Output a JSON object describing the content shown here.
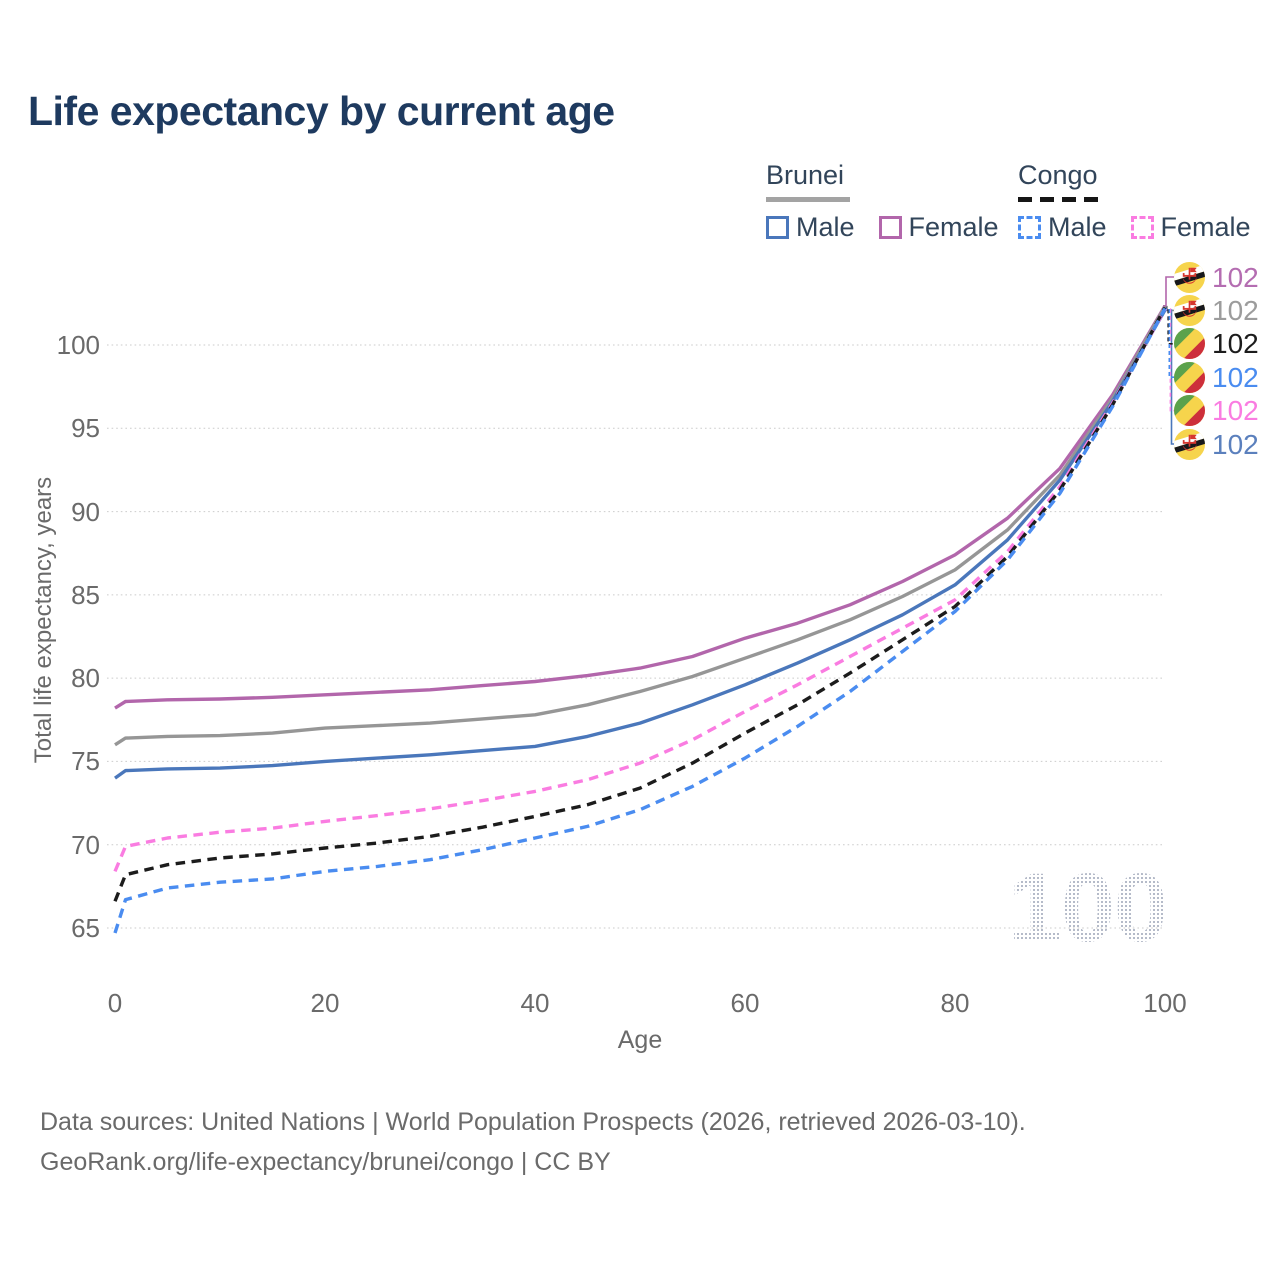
{
  "title": "Life expectancy by current age",
  "legend": {
    "groups": [
      {
        "name": "Brunei",
        "line_style": "solid",
        "rule_color": "#a3a3a3",
        "items": [
          {
            "label": "Male",
            "color": "#4a77bb"
          },
          {
            "label": "Female",
            "color": "#b266ab"
          }
        ]
      },
      {
        "name": "Congo",
        "line_style": "dashed",
        "rule_color": "#161616",
        "items": [
          {
            "label": "Male",
            "color": "#4a8cf0"
          },
          {
            "label": "Female",
            "color": "#fa7ce1"
          }
        ]
      }
    ]
  },
  "axes": {
    "x": {
      "label": "Age",
      "ticks": [
        0,
        20,
        40,
        60,
        80,
        100
      ]
    },
    "y": {
      "label": "Total life expectancy, years",
      "ticks": [
        65,
        70,
        75,
        80,
        85,
        90,
        95,
        100
      ]
    }
  },
  "watermark": {
    "text": "100"
  },
  "footer": {
    "line1": "Data sources: United Nations | World Population Prospects (2026, retrieved 2026-03-10).",
    "line2": "GeoRank.org/life-expectancy/brunei/congo | CC BY"
  },
  "chart_data": {
    "type": "line",
    "title": "Life expectancy by current age",
    "xlabel": "Age",
    "ylabel": "Total life expectancy, years",
    "xlim": [
      0,
      100
    ],
    "ylim": [
      63,
      104
    ],
    "grid": "horizontal-dotted",
    "legend_position": "top-right",
    "ages": [
      0,
      1,
      5,
      10,
      15,
      20,
      25,
      30,
      35,
      40,
      45,
      50,
      55,
      60,
      65,
      70,
      75,
      80,
      85,
      90,
      95,
      100
    ],
    "series": [
      {
        "id": "brunei_female",
        "name": "Brunei Female",
        "country": "Brunei",
        "sex": "Female",
        "style": "solid",
        "color": "#b266ab",
        "label_color": "#b46db1",
        "end_label": "102",
        "label_row": 0,
        "values": [
          78.2,
          78.6,
          78.7,
          78.75,
          78.85,
          79.0,
          79.15,
          79.3,
          79.55,
          79.8,
          80.15,
          80.6,
          81.3,
          82.4,
          83.3,
          84.4,
          85.8,
          87.4,
          89.6,
          92.6,
          97.0,
          102.35
        ]
      },
      {
        "id": "brunei_both",
        "name": "Brunei Both sexes",
        "country": "Brunei",
        "sex": "Both",
        "style": "solid",
        "color": "#969696",
        "label_color": "#9c9c9c",
        "end_label": "102",
        "label_row": 1,
        "values": [
          76.0,
          76.4,
          76.5,
          76.55,
          76.7,
          77.0,
          77.15,
          77.3,
          77.55,
          77.8,
          78.4,
          79.2,
          80.1,
          81.2,
          82.3,
          83.5,
          84.9,
          86.5,
          88.9,
          92.2,
          96.8,
          102.3
        ]
      },
      {
        "id": "brunei_male",
        "name": "Brunei Male",
        "country": "Brunei",
        "sex": "Male",
        "style": "solid",
        "color": "#4a77bb",
        "label_color": "#5b80bd",
        "end_label": "102",
        "label_row": 5,
        "values": [
          74.0,
          74.45,
          74.55,
          74.6,
          74.75,
          75.0,
          75.2,
          75.4,
          75.65,
          75.9,
          76.5,
          77.3,
          78.4,
          79.6,
          80.9,
          82.3,
          83.8,
          85.6,
          88.3,
          91.9,
          96.6,
          102.1
        ]
      },
      {
        "id": "congo_female",
        "name": "Congo Female",
        "country": "Congo",
        "sex": "Female",
        "style": "dashed",
        "color": "#fa7ce1",
        "label_color": "#fa7ce1",
        "end_label": "102",
        "label_row": 4,
        "values": [
          68.4,
          69.9,
          70.4,
          70.75,
          71.0,
          71.4,
          71.75,
          72.15,
          72.65,
          73.2,
          73.9,
          74.9,
          76.3,
          78.0,
          79.6,
          81.3,
          83.0,
          84.7,
          87.6,
          91.5,
          96.5,
          102.15
        ]
      },
      {
        "id": "congo_both",
        "name": "Congo Both sexes",
        "country": "Congo",
        "sex": "Both",
        "style": "dashed",
        "color": "#1c1c1c",
        "label_color": "#1c1c1c",
        "end_label": "102",
        "label_row": 2,
        "values": [
          66.6,
          68.2,
          68.8,
          69.2,
          69.45,
          69.8,
          70.1,
          70.5,
          71.05,
          71.7,
          72.4,
          73.4,
          74.9,
          76.7,
          78.4,
          80.3,
          82.3,
          84.3,
          87.3,
          91.3,
          96.4,
          102.25
        ]
      },
      {
        "id": "congo_male",
        "name": "Congo Male",
        "country": "Congo",
        "sex": "Male",
        "style": "dashed",
        "color": "#4a8cf0",
        "label_color": "#4a8cf0",
        "end_label": "102",
        "label_row": 3,
        "values": [
          64.7,
          66.7,
          67.4,
          67.75,
          67.95,
          68.4,
          68.7,
          69.1,
          69.7,
          70.4,
          71.1,
          72.1,
          73.5,
          75.2,
          77.1,
          79.2,
          81.6,
          84.0,
          87.1,
          91.1,
          96.3,
          102.2
        ]
      }
    ]
  }
}
